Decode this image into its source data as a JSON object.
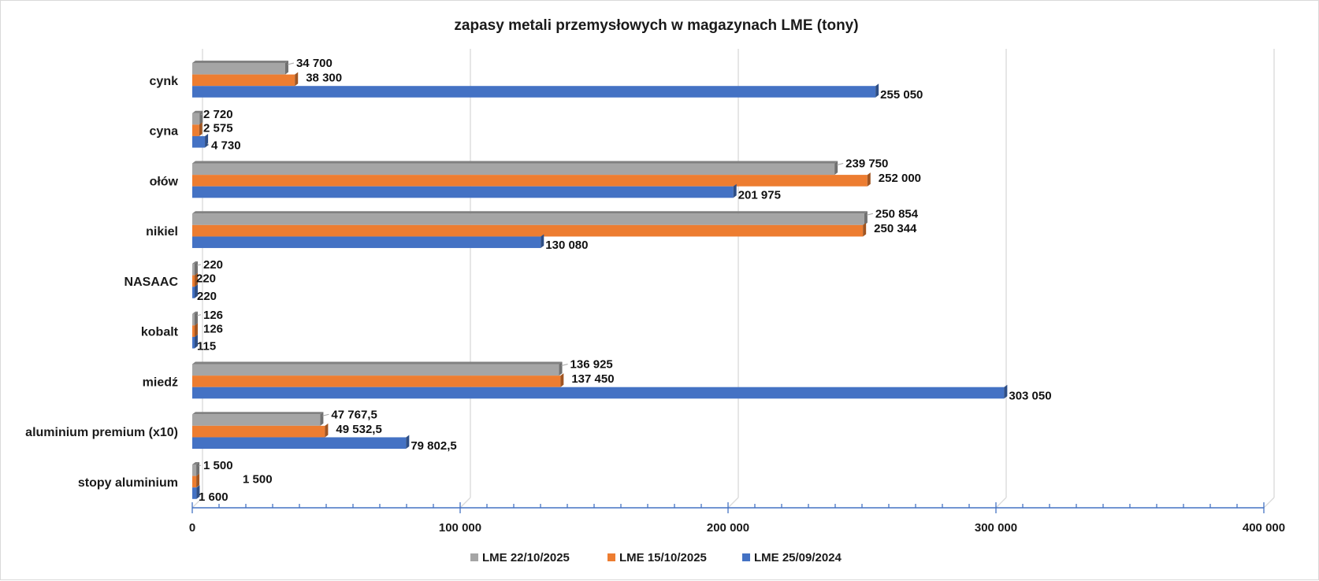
{
  "chart_data": {
    "type": "bar",
    "orientation": "horizontal",
    "style": "3d-clustered",
    "title": "zapasy metali przemysłowych w magazynach LME (tony)",
    "xlabel": "",
    "ylabel": "",
    "xlim": [
      0,
      400000
    ],
    "x_ticks": [
      0,
      100000,
      200000,
      300000,
      400000
    ],
    "x_tick_labels": [
      "0",
      "100 000",
      "200 000",
      "300 000",
      "400 000"
    ],
    "minor_tick_step": 10000,
    "grid": true,
    "legend_position": "bottom",
    "categories": [
      "cynk",
      "cyna",
      "ołów",
      "nikiel",
      "NASAAC",
      "kobalt",
      "miedź",
      "aluminium premium (x10)",
      "stopy aluminium"
    ],
    "series": [
      {
        "name": "LME 22/10/2025",
        "color": "#a5a5a5",
        "values": [
          34700,
          2720,
          239750,
          250854,
          220,
          126,
          136925,
          47767.5,
          1500
        ],
        "labels": [
          "34 700",
          "2 720",
          "239 750",
          "250 854",
          "220",
          "126",
          "136 925",
          "47 767,5",
          "1 500"
        ]
      },
      {
        "name": "LME 15/10/2025",
        "color": "#ed7d31",
        "values": [
          38300,
          2575,
          252000,
          250344,
          220,
          126,
          137450,
          49532.5,
          1500
        ],
        "labels": [
          "38 300",
          "2 575",
          "252 000",
          "250 344",
          "220",
          "126",
          "137 450",
          "49 532,5",
          "1 500"
        ]
      },
      {
        "name": "LME 25/09/2024",
        "color": "#4472c4",
        "values": [
          255050,
          4730,
          201975,
          130080,
          220,
          115,
          303050,
          79802.5,
          1600
        ],
        "labels": [
          "255 050",
          "4 730",
          "201 975",
          "130 080",
          "220",
          "115",
          "303 050",
          "79 802,5",
          "1 600"
        ]
      }
    ]
  }
}
